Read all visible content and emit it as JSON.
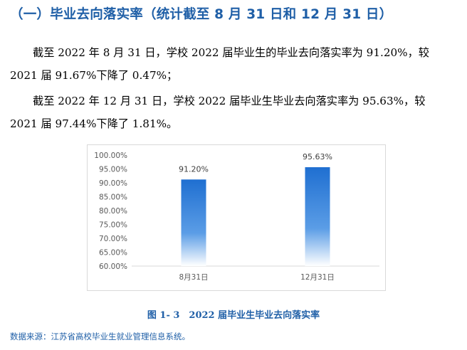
{
  "heading": "（一）毕业去向落实率（统计截至 8 月 31 日和 12 月 31 日）",
  "paragraphs": {
    "p1_line1": "截至 2022 年 8 月 31 日，学校 2022 届毕业生的毕业去向落实率为 91.20%，较",
    "p1_line2": "2021 届 91.67%下降了 0.47%；",
    "p2_line1": "截至 2022 年 12 月 31 日，学校 2022 届毕业生毕业去向落实率为 95.63%，较",
    "p2_line2": "2021 届 97.44%下降了 1.81%。"
  },
  "colors": {
    "heading": "#1f5fa7",
    "bar_top": "#1f6fd1",
    "bar_bottom": "#ffffff"
  },
  "chart_data": {
    "type": "bar",
    "categories": [
      "8月31日",
      "12月31日"
    ],
    "values": [
      91.2,
      95.63
    ],
    "data_labels": [
      "91.20%",
      "95.63%"
    ],
    "ylim": [
      60,
      100
    ],
    "yticks": [
      "100.00%",
      "95.00%",
      "90.00%",
      "85.00%",
      "80.00%",
      "75.00%",
      "70.00%",
      "65.00%",
      "60.00%"
    ],
    "ytick_values": [
      100,
      95,
      90,
      85,
      80,
      75,
      70,
      65,
      60
    ],
    "grid": false,
    "legend": "none",
    "caption": "图 1- 3　2022 届毕业生毕业去向落实率"
  },
  "source": "数据来源：江苏省高校毕业生就业管理信息系统。"
}
